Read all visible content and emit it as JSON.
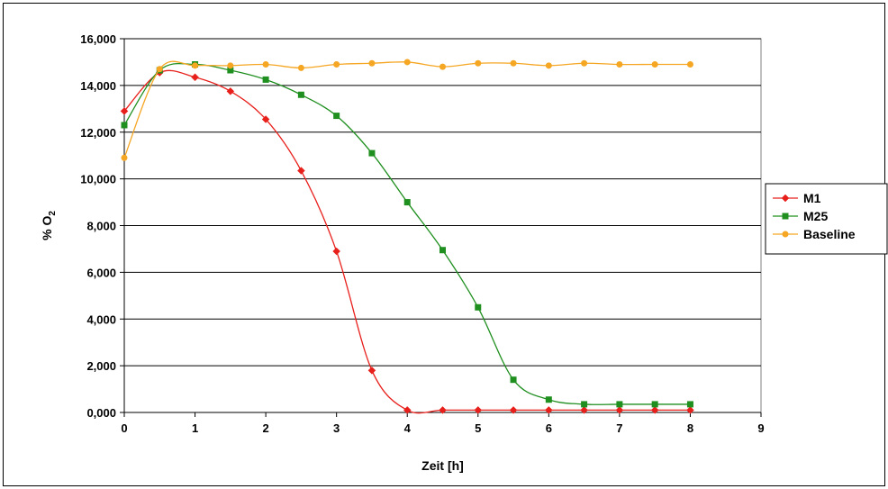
{
  "chart_data": {
    "type": "line",
    "xlabel": "Zeit [h]",
    "ylabel": "% O",
    "ylabel_sub": "2",
    "xlim": [
      0,
      9
    ],
    "ylim": [
      0,
      16000
    ],
    "x_ticks": [
      "0",
      "1",
      "2",
      "3",
      "4",
      "5",
      "6",
      "7",
      "8",
      "9"
    ],
    "y_ticks": [
      "0,000",
      "2,000",
      "4,000",
      "6,000",
      "8,000",
      "10,000",
      "12,000",
      "14,000",
      "16,000"
    ],
    "grid": "horizontal",
    "legend_position": "right",
    "x": [
      0,
      0.5,
      1,
      1.5,
      2,
      2.5,
      3,
      3.5,
      4,
      4.5,
      5,
      5.5,
      6,
      6.5,
      7,
      7.5,
      8
    ],
    "series": [
      {
        "name": "M1",
        "color": "#e8201c",
        "marker": "diamond",
        "values": [
          12900,
          14550,
          14350,
          13750,
          12550,
          10350,
          6900,
          1800,
          100,
          100,
          100,
          100,
          100,
          100,
          100,
          100,
          100
        ]
      },
      {
        "name": "M25",
        "color": "#1f8f1f",
        "marker": "square",
        "values": [
          12300,
          14650,
          14900,
          14650,
          14250,
          13600,
          12700,
          11100,
          9000,
          6950,
          4500,
          1400,
          550,
          350,
          350,
          350,
          350
        ]
      },
      {
        "name": "Baseline",
        "color": "#f5a623",
        "marker": "circle",
        "values": [
          10900,
          14700,
          14850,
          14850,
          14900,
          14750,
          14900,
          14950,
          15000,
          14800,
          14950,
          14950,
          14850,
          14950,
          14900,
          14900,
          14900
        ]
      }
    ]
  }
}
